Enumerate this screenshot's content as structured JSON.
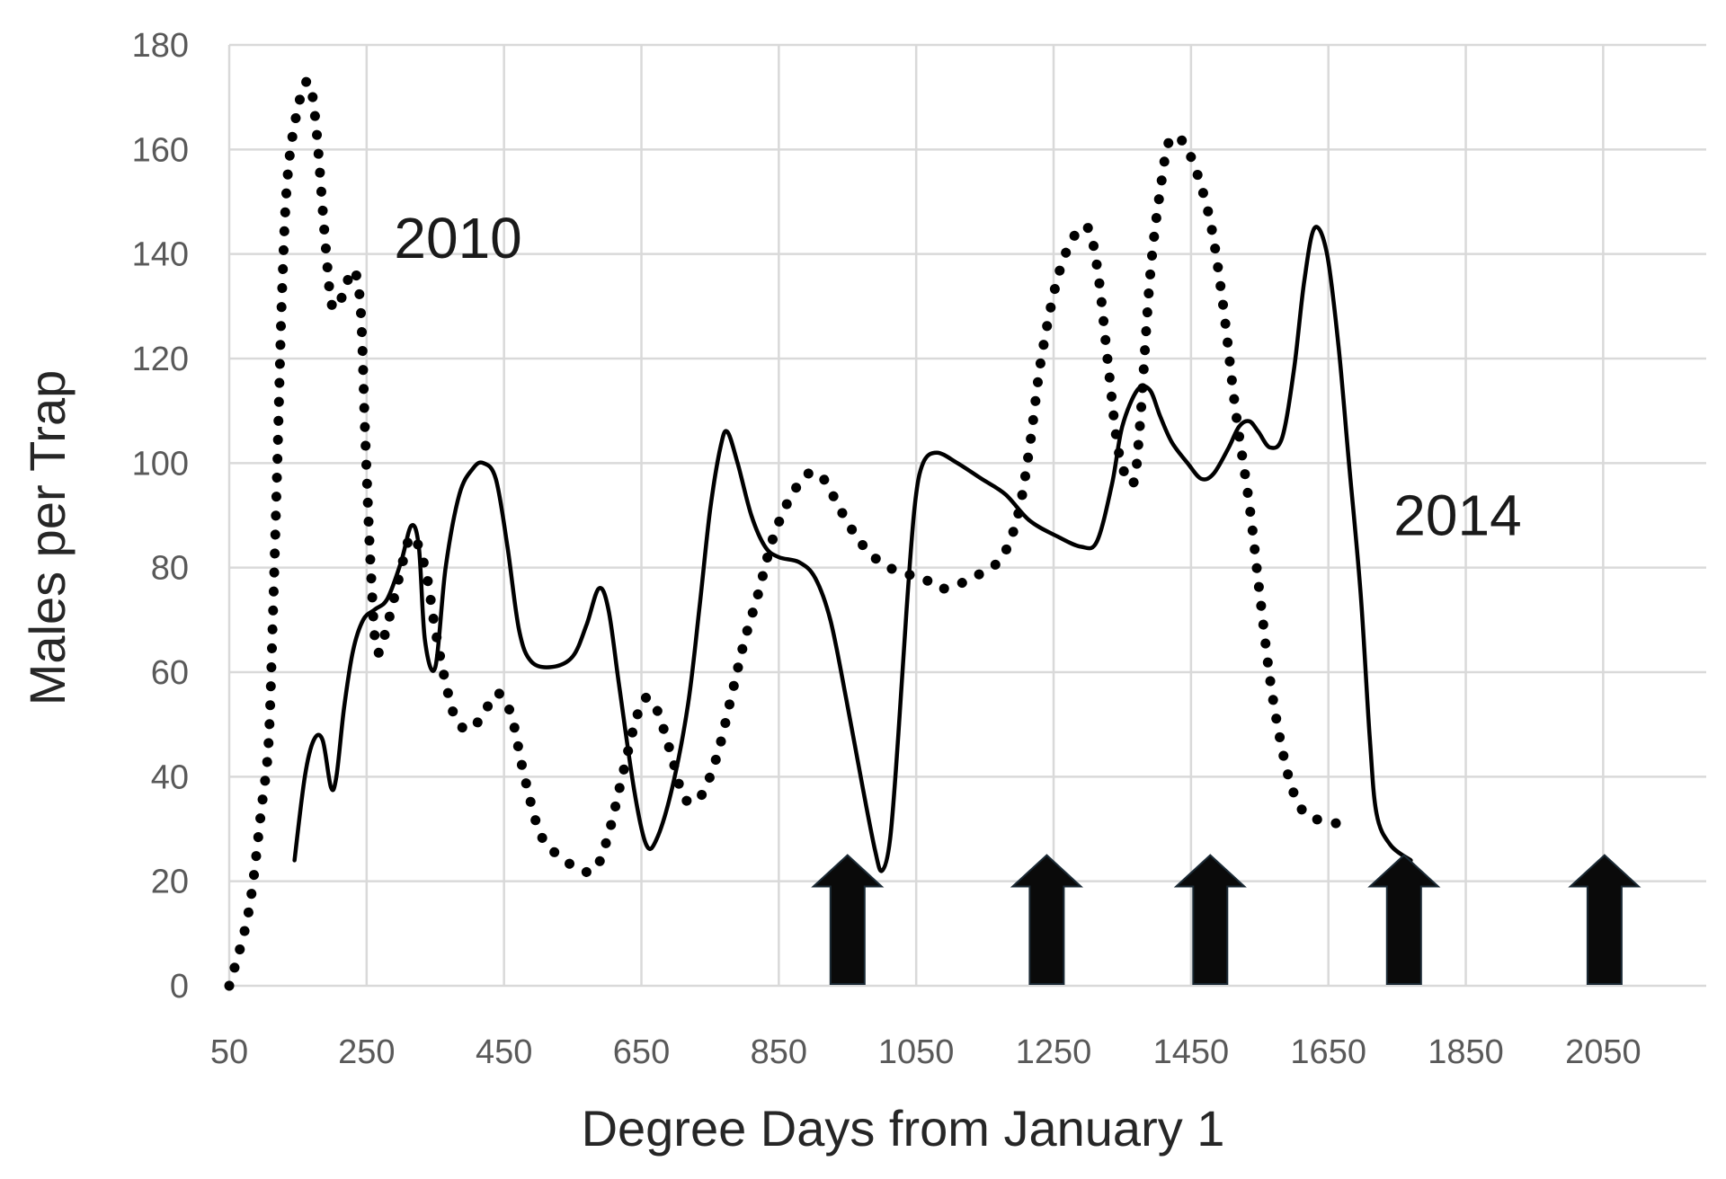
{
  "chart_data": {
    "type": "line",
    "title": "",
    "xlabel": "Degree Days from January 1",
    "ylabel": "Males per Trap",
    "xlim": [
      50,
      2200
    ],
    "ylim": [
      0,
      180
    ],
    "x_ticks": [
      50,
      250,
      450,
      650,
      850,
      1050,
      1250,
      1450,
      1650,
      1850,
      2050
    ],
    "y_ticks": [
      0,
      20,
      40,
      60,
      80,
      100,
      120,
      140,
      160,
      180
    ],
    "x_tick_labels": [
      "50",
      "250",
      "450",
      "650",
      "850",
      "1050",
      "1250",
      "1450",
      "1650",
      "1850",
      "2050"
    ],
    "y_tick_labels": [
      "0",
      "20",
      "40",
      "60",
      "80",
      "100",
      "120",
      "140",
      "160",
      "180"
    ],
    "grid": true,
    "legend": "none",
    "series": [
      {
        "name": "2010",
        "style": "dotted",
        "color": "#000000",
        "label_pos": [
          290,
          143
        ],
        "points": [
          [
            50,
            0
          ],
          [
            78,
            14
          ],
          [
            97,
            34
          ],
          [
            107,
            46
          ],
          [
            113,
            68
          ],
          [
            120,
            100
          ],
          [
            127,
            133
          ],
          [
            135,
            155
          ],
          [
            150,
            168
          ],
          [
            165,
            173
          ],
          [
            176,
            165
          ],
          [
            190,
            142
          ],
          [
            200,
            130
          ],
          [
            215,
            132
          ],
          [
            230,
            137
          ],
          [
            241,
            130
          ],
          [
            248,
            105
          ],
          [
            256,
            80
          ],
          [
            265,
            64
          ],
          [
            282,
            70
          ],
          [
            297,
            78
          ],
          [
            315,
            86
          ],
          [
            335,
            80
          ],
          [
            350,
            68
          ],
          [
            365,
            58
          ],
          [
            380,
            51
          ],
          [
            400,
            49
          ],
          [
            420,
            52
          ],
          [
            440,
            56
          ],
          [
            460,
            52
          ],
          [
            478,
            41
          ],
          [
            500,
            30
          ],
          [
            520,
            26
          ],
          [
            550,
            23
          ],
          [
            580,
            22
          ],
          [
            600,
            28
          ],
          [
            622,
            40
          ],
          [
            640,
            50
          ],
          [
            655,
            55
          ],
          [
            672,
            53
          ],
          [
            694,
            44
          ],
          [
            712,
            36
          ],
          [
            735,
            36
          ],
          [
            760,
            44
          ],
          [
            782,
            56
          ],
          [
            800,
            66
          ],
          [
            820,
            75
          ],
          [
            840,
            85
          ],
          [
            865,
            93
          ],
          [
            893,
            98
          ],
          [
            915,
            97
          ],
          [
            940,
            91
          ],
          [
            968,
            85
          ],
          [
            998,
            81
          ],
          [
            1030,
            79
          ],
          [
            1060,
            78
          ],
          [
            1085,
            76
          ],
          [
            1115,
            77
          ],
          [
            1145,
            79
          ],
          [
            1175,
            82
          ],
          [
            1198,
            90
          ],
          [
            1215,
            103
          ],
          [
            1232,
            120
          ],
          [
            1255,
            135
          ],
          [
            1278,
            143
          ],
          [
            1300,
            145
          ],
          [
            1315,
            136
          ],
          [
            1330,
            118
          ],
          [
            1345,
            102
          ],
          [
            1365,
            96
          ],
          [
            1375,
            106
          ],
          [
            1390,
            135
          ],
          [
            1405,
            152
          ],
          [
            1420,
            162
          ],
          [
            1445,
            160
          ],
          [
            1475,
            148
          ],
          [
            1495,
            132
          ],
          [
            1515,
            110
          ],
          [
            1535,
            92
          ],
          [
            1550,
            75
          ],
          [
            1568,
            56
          ],
          [
            1590,
            41
          ],
          [
            1610,
            34
          ],
          [
            1630,
            32
          ],
          [
            1665,
            31
          ]
        ]
      },
      {
        "name": "2014",
        "style": "solid",
        "color": "#000000",
        "label_pos": [
          1745,
          90
        ],
        "points": [
          [
            145,
            24
          ],
          [
            160,
            40
          ],
          [
            173,
            47
          ],
          [
            186,
            47
          ],
          [
            198,
            38
          ],
          [
            206,
            40
          ],
          [
            217,
            53
          ],
          [
            230,
            64
          ],
          [
            245,
            70
          ],
          [
            262,
            72
          ],
          [
            280,
            74
          ],
          [
            300,
            81
          ],
          [
            315,
            88
          ],
          [
            326,
            84
          ],
          [
            335,
            66
          ],
          [
            350,
            61
          ],
          [
            365,
            80
          ],
          [
            385,
            94
          ],
          [
            405,
            99
          ],
          [
            420,
            100
          ],
          [
            438,
            97
          ],
          [
            455,
            84
          ],
          [
            472,
            68
          ],
          [
            490,
            62
          ],
          [
            520,
            61
          ],
          [
            550,
            63
          ],
          [
            570,
            69
          ],
          [
            588,
            76
          ],
          [
            602,
            72
          ],
          [
            618,
            57
          ],
          [
            640,
            37
          ],
          [
            657,
            27
          ],
          [
            672,
            28
          ],
          [
            695,
            38
          ],
          [
            718,
            54
          ],
          [
            735,
            73
          ],
          [
            750,
            91
          ],
          [
            765,
            103
          ],
          [
            775,
            106
          ],
          [
            790,
            100
          ],
          [
            810,
            90
          ],
          [
            830,
            84
          ],
          [
            850,
            82
          ],
          [
            880,
            81
          ],
          [
            903,
            78
          ],
          [
            925,
            70
          ],
          [
            948,
            55
          ],
          [
            972,
            38
          ],
          [
            990,
            26
          ],
          [
            1000,
            22
          ],
          [
            1012,
            28
          ],
          [
            1024,
            48
          ],
          [
            1036,
            72
          ],
          [
            1048,
            92
          ],
          [
            1060,
            100
          ],
          [
            1080,
            102
          ],
          [
            1110,
            100
          ],
          [
            1145,
            97
          ],
          [
            1180,
            94
          ],
          [
            1215,
            89
          ],
          [
            1255,
            86
          ],
          [
            1290,
            84
          ],
          [
            1313,
            85
          ],
          [
            1335,
            96
          ],
          [
            1350,
            107
          ],
          [
            1372,
            114
          ],
          [
            1390,
            114
          ],
          [
            1405,
            109
          ],
          [
            1422,
            104
          ],
          [
            1445,
            100
          ],
          [
            1465,
            97
          ],
          [
            1483,
            98
          ],
          [
            1505,
            103
          ],
          [
            1520,
            107
          ],
          [
            1535,
            108
          ],
          [
            1548,
            106
          ],
          [
            1565,
            103
          ],
          [
            1583,
            105
          ],
          [
            1600,
            118
          ],
          [
            1615,
            135
          ],
          [
            1630,
            145
          ],
          [
            1648,
            140
          ],
          [
            1665,
            122
          ],
          [
            1680,
            100
          ],
          [
            1697,
            75
          ],
          [
            1710,
            48
          ],
          [
            1720,
            33
          ],
          [
            1740,
            27
          ],
          [
            1770,
            24
          ]
        ]
      }
    ],
    "annotations": {
      "arrows_at_x": [
        950,
        1240,
        1478,
        1760,
        2052
      ]
    }
  }
}
